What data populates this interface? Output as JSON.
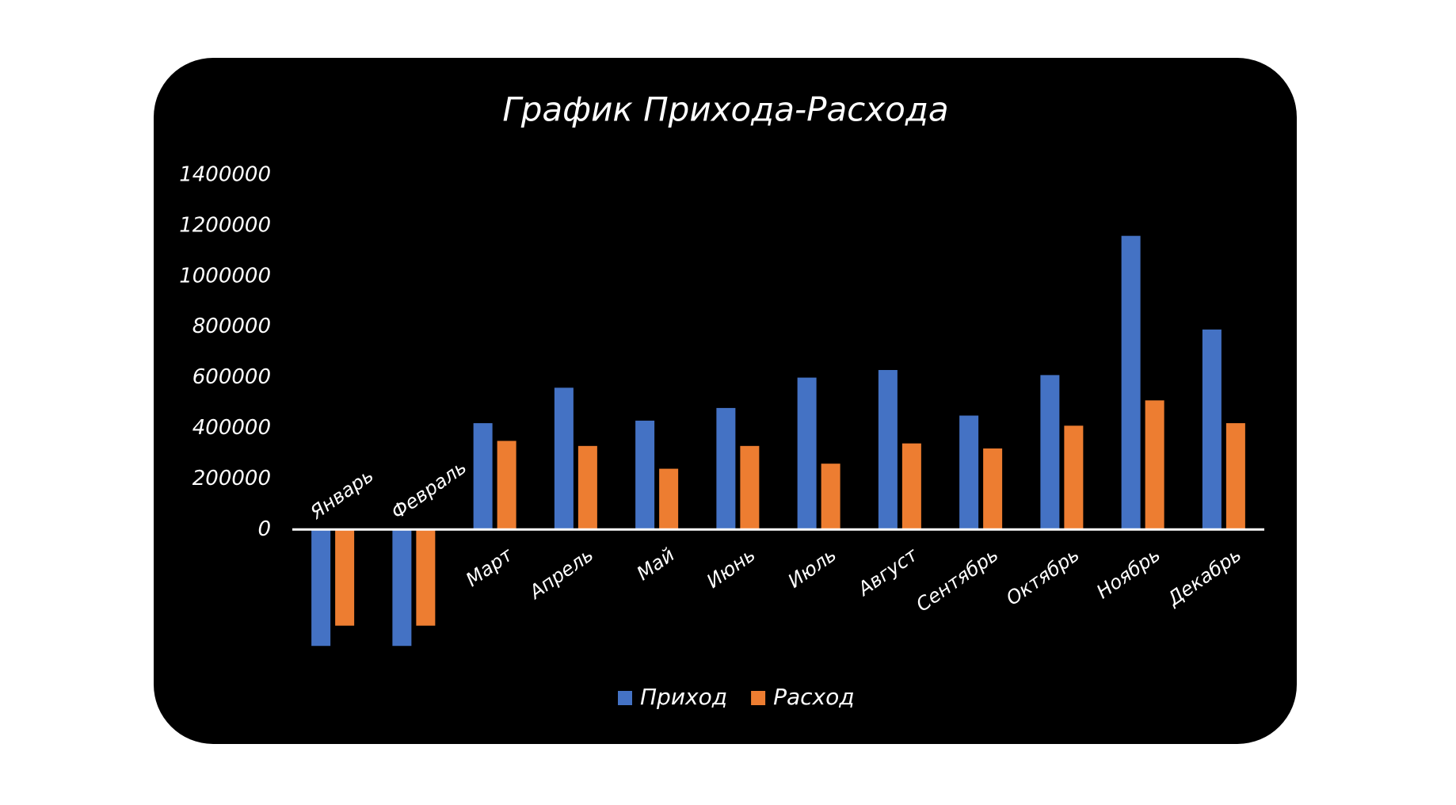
{
  "chart_data": {
    "type": "bar",
    "title": "График Прихода-Расхода",
    "categories": [
      "Январь",
      "Февраль",
      "Март",
      "Апрель",
      "Май",
      "Июнь",
      "Июль",
      "Август",
      "Сентябрь",
      "Октябрь",
      "Ноябрь",
      "Декабрь"
    ],
    "series": [
      {
        "name": "Приход",
        "color": "#4472c4",
        "values": [
          -460000,
          -460000,
          420000,
          560000,
          430000,
          480000,
          600000,
          630000,
          450000,
          610000,
          1160000,
          790000
        ]
      },
      {
        "name": "Расход",
        "color": "#ed7d31",
        "values": [
          -380000,
          -380000,
          350000,
          330000,
          240000,
          330000,
          260000,
          340000,
          320000,
          410000,
          510000,
          420000
        ]
      }
    ],
    "ylim": [
      -500000,
      1400000
    ],
    "yticks": [
      0,
      200000,
      400000,
      600000,
      800000,
      1000000,
      1200000,
      1400000
    ],
    "grid": false,
    "legend": "bottom"
  }
}
